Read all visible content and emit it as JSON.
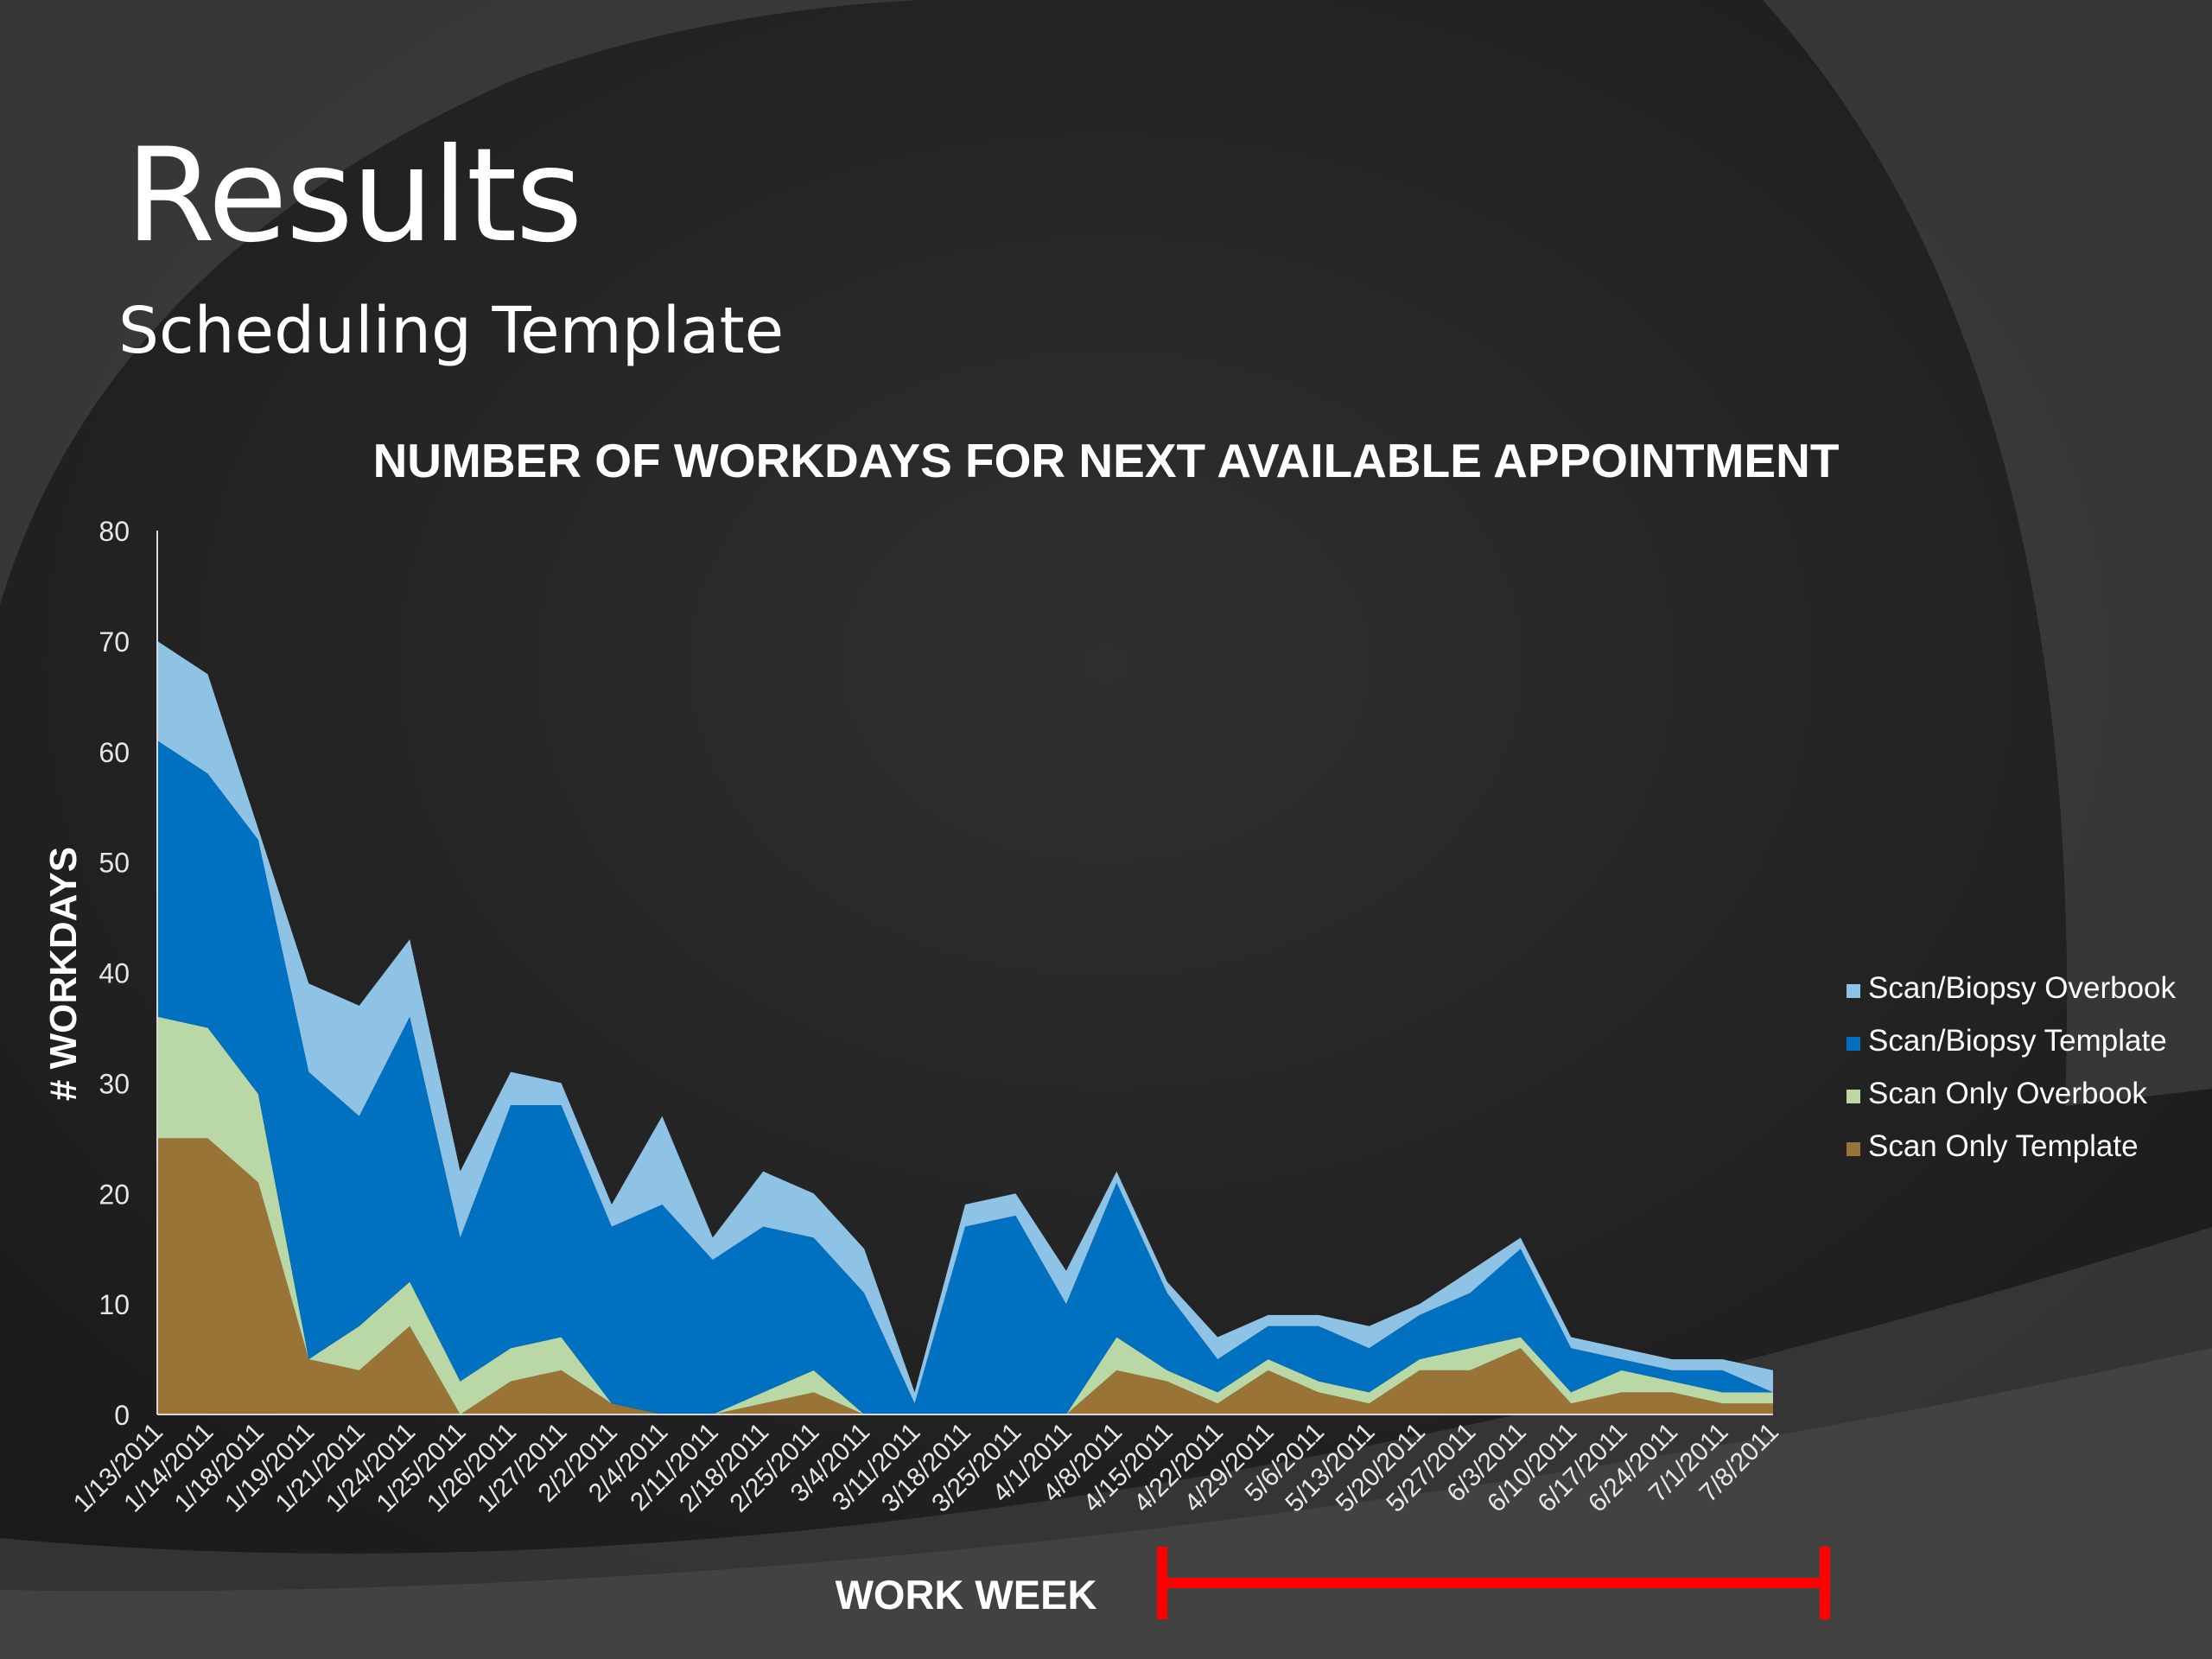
{
  "slide": {
    "title": "Results",
    "subtitle": "Scheduling Template"
  },
  "colors": {
    "scan_biopsy_overbook": "#8ec3e6",
    "scan_biopsy_template": "#0070c0",
    "scan_only_overbook": "#b9d8a6",
    "scan_only_template": "#9a7436",
    "highlight": "#ff0000",
    "axis": "#d9d9d9"
  },
  "chart_data": {
    "type": "area",
    "stacked": true,
    "title": "NUMBER OF WORKDAYS FOR NEXT AVAILABLE APPOINTMENT",
    "xlabel": "WORK WEEK",
    "ylabel": "# WORKDAYS",
    "ylim": [
      0,
      80
    ],
    "yticks": [
      0,
      10,
      20,
      30,
      40,
      50,
      60,
      70,
      80
    ],
    "grid": false,
    "legend_position": "right",
    "categories": [
      "1/13/2011",
      "1/14/2011",
      "1/18/2011",
      "1/19/2011",
      "1/21/2011",
      "1/24/2011",
      "1/25/2011",
      "1/26/2011",
      "1/27/2011",
      "2/2/2011",
      "2/4/2011",
      "2/11/2011",
      "2/18/2011",
      "2/25/2011",
      "3/4/2011",
      "3/11/2011",
      "3/18/2011",
      "3/25/2011",
      "4/1/2011",
      "4/8/2011",
      "4/15/2011",
      "4/22/2011",
      "4/29/2011",
      "5/6/2011",
      "5/13/2011",
      "5/20/2011",
      "5/27/2011",
      "6/3/2011",
      "6/10/2011",
      "6/17/2011",
      "6/24/2011",
      "7/1/2011",
      "7/8/2011"
    ],
    "series": [
      {
        "name": "Scan Only Template",
        "color_key": "scan_only_template",
        "values": [
          25,
          25,
          21,
          5,
          4,
          8,
          0,
          3,
          4,
          1,
          0,
          0,
          1,
          2,
          0,
          0,
          0,
          0,
          0,
          4,
          3,
          1,
          4,
          2,
          1,
          4,
          4,
          6,
          1,
          2,
          2,
          1,
          1
        ]
      },
      {
        "name": "Scan Only Overbook",
        "color_key": "scan_only_overbook",
        "values": [
          11,
          10,
          8,
          0,
          4,
          4,
          3,
          3,
          3,
          0,
          0,
          0,
          1,
          2,
          0,
          0,
          0,
          0,
          0,
          3,
          1,
          1,
          1,
          1,
          1,
          1,
          2,
          1,
          1,
          2,
          1,
          1,
          1
        ]
      },
      {
        "name": "Scan/Biopsy Template",
        "color_key": "scan_biopsy_template",
        "values": [
          25,
          23,
          23,
          26,
          19,
          24,
          13,
          22,
          21,
          16,
          19,
          14,
          15,
          12,
          11,
          1,
          17,
          18,
          10,
          14,
          7,
          3,
          3,
          5,
          4,
          4,
          5,
          8,
          4,
          1,
          1,
          2,
          0
        ]
      },
      {
        "name": "Scan/Biopsy Overbook",
        "color_key": "scan_biopsy_overbook",
        "values": [
          9,
          9,
          1,
          8,
          10,
          7,
          6,
          3,
          2,
          2,
          8,
          2,
          5,
          4,
          4,
          1,
          2,
          2,
          3,
          1,
          1,
          2,
          1,
          1,
          2,
          1,
          2,
          1,
          1,
          1,
          1,
          1,
          2
        ]
      }
    ],
    "legend": [
      {
        "label": "Scan/Biopsy Overbook",
        "color_key": "scan_biopsy_overbook"
      },
      {
        "label": "Scan/Biopsy Template",
        "color_key": "scan_biopsy_template"
      },
      {
        "label": "Scan Only Overbook",
        "color_key": "scan_only_overbook"
      },
      {
        "label": "Scan Only Template",
        "color_key": "scan_only_template"
      }
    ],
    "annotation": {
      "type": "bracket",
      "from": "4/15/2011",
      "to": "7/8/2011",
      "color_key": "highlight"
    }
  }
}
